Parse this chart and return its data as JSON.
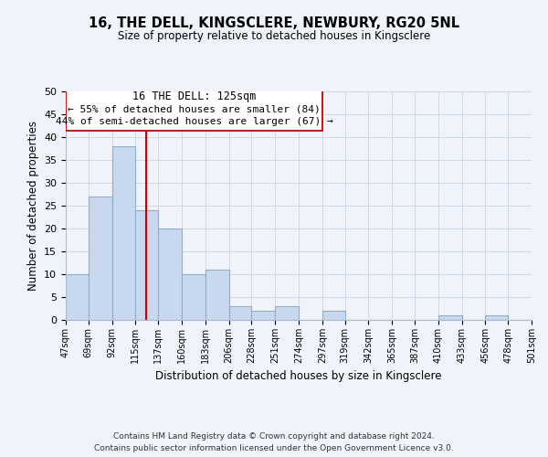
{
  "title": "16, THE DELL, KINGSCLERE, NEWBURY, RG20 5NL",
  "subtitle": "Size of property relative to detached houses in Kingsclere",
  "xlabel": "Distribution of detached houses by size in Kingsclere",
  "ylabel": "Number of detached properties",
  "bar_edges": [
    47,
    69,
    92,
    115,
    137,
    160,
    183,
    206,
    228,
    251,
    274,
    297,
    319,
    342,
    365,
    387,
    410,
    433,
    456,
    478,
    501
  ],
  "bar_heights": [
    10,
    27,
    38,
    24,
    20,
    10,
    11,
    3,
    2,
    3,
    0,
    2,
    0,
    0,
    0,
    0,
    1,
    0,
    1,
    0
  ],
  "bar_color": "#c8d8ee",
  "bar_edgecolor": "#8ab0d0",
  "vline_x": 125,
  "vline_color": "#cc0000",
  "ylim": [
    0,
    50
  ],
  "annotation_title": "16 THE DELL: 125sqm",
  "annotation_line1": "← 55% of detached houses are smaller (84)",
  "annotation_line2": "44% of semi-detached houses are larger (67) →",
  "footnote1": "Contains HM Land Registry data © Crown copyright and database right 2024.",
  "footnote2": "Contains public sector information licensed under the Open Government Licence v3.0.",
  "tick_labels": [
    "47sqm",
    "69sqm",
    "92sqm",
    "115sqm",
    "137sqm",
    "160sqm",
    "183sqm",
    "206sqm",
    "228sqm",
    "251sqm",
    "274sqm",
    "297sqm",
    "319sqm",
    "342sqm",
    "365sqm",
    "387sqm",
    "410sqm",
    "433sqm",
    "456sqm",
    "478sqm",
    "501sqm"
  ],
  "background_color": "#f0f4fa"
}
